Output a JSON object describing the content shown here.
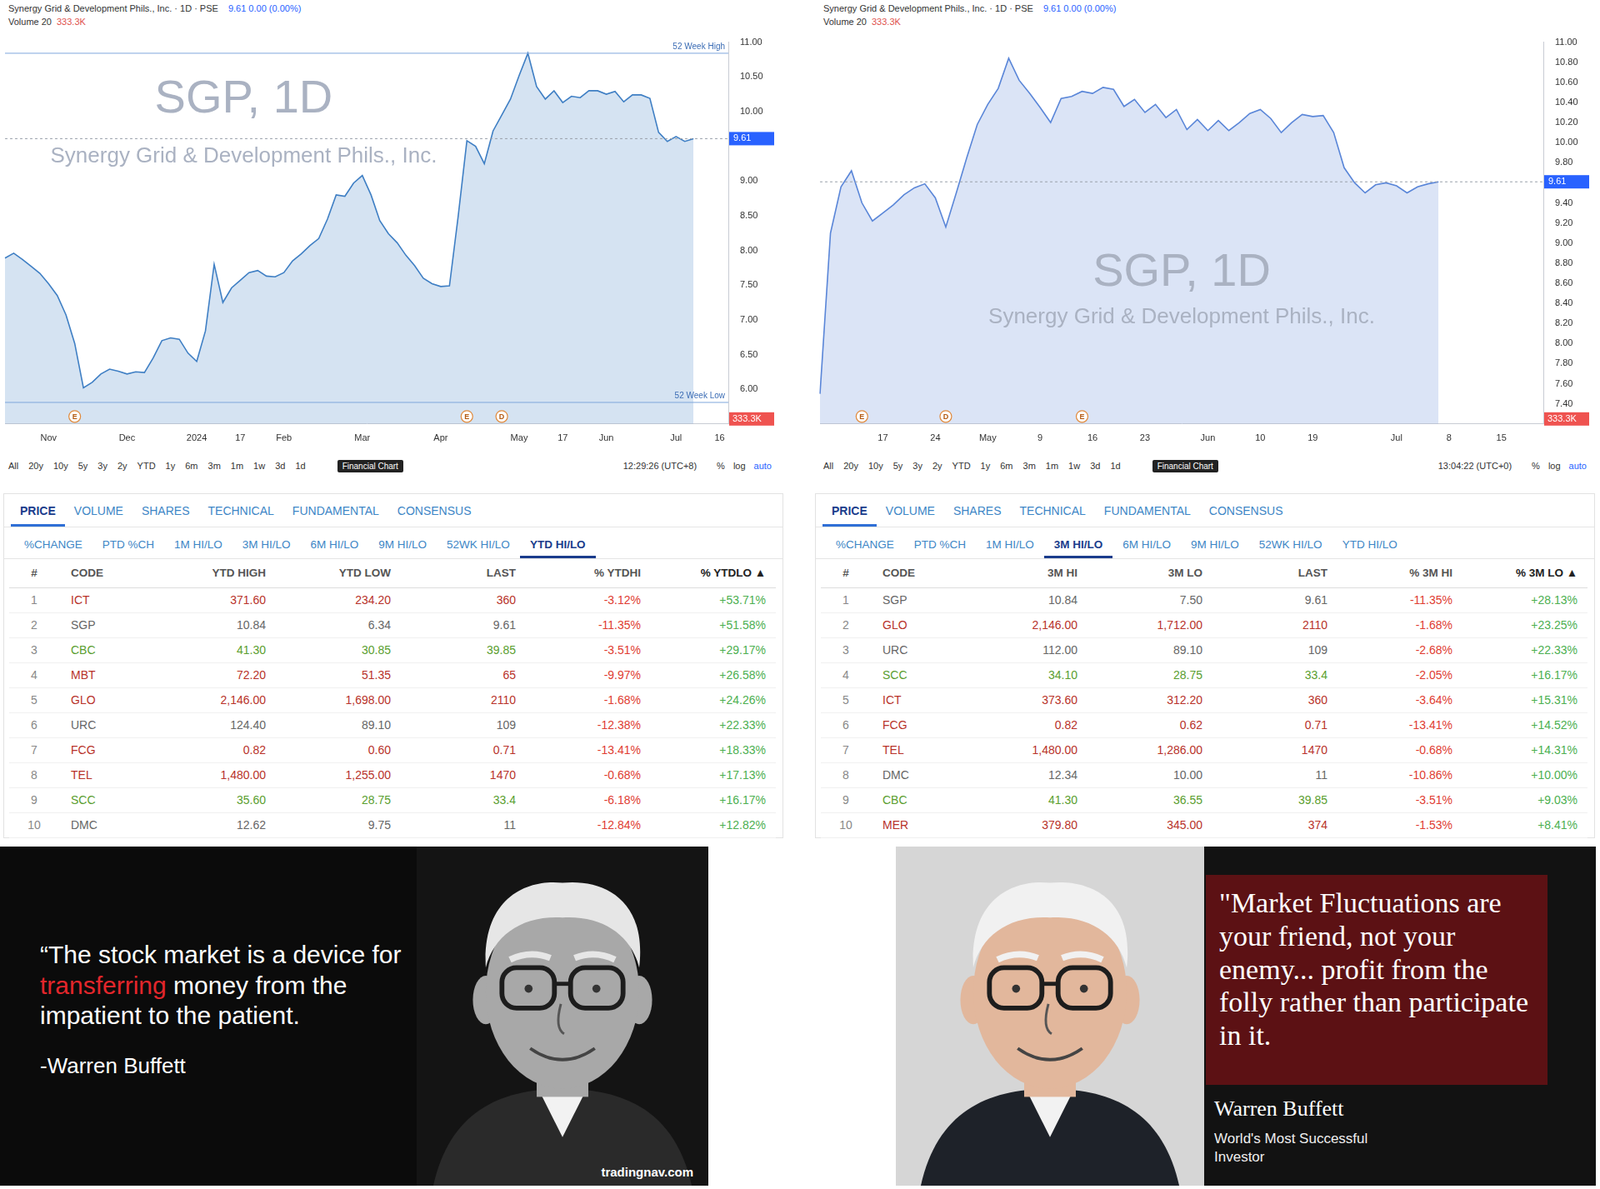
{
  "chart_data": [
    {
      "type": "line",
      "title": "Synergy Grid & Development Phils., Inc. · 1D · PSE",
      "subtitle": "9.61 0.00 (0.00%)",
      "volume_label": "Volume 20",
      "volume_value": "333.3K",
      "watermark": [
        "SGP, 1D",
        "Synergy Grid & Development Phils., Inc."
      ],
      "categories": [
        null,
        null,
        null,
        null,
        null,
        "Nov",
        null,
        null,
        null,
        null,
        null,
        null,
        null,
        null,
        "Dec",
        null,
        null,
        null,
        null,
        null,
        null,
        null,
        "2024",
        null,
        null,
        null,
        null,
        "17",
        null,
        null,
        null,
        null,
        "Feb",
        null,
        null,
        null,
        null,
        null,
        null,
        null,
        null,
        "Mar",
        null,
        null,
        null,
        null,
        null,
        null,
        null,
        null,
        "Apr",
        null,
        null,
        null,
        null,
        null,
        null,
        null,
        null,
        "May",
        null,
        null,
        null,
        null,
        "17",
        null,
        null,
        null,
        null,
        "Jun",
        null,
        null,
        null,
        null,
        null,
        null,
        null,
        "Jul",
        null,
        null,
        null,
        null,
        "16",
        null
      ],
      "values": [
        7.89,
        7.96,
        7.87,
        7.77,
        7.67,
        7.52,
        7.35,
        7.07,
        6.66,
        6.02,
        6.1,
        6.22,
        6.29,
        6.26,
        6.22,
        6.25,
        6.24,
        6.45,
        6.7,
        6.74,
        6.72,
        6.52,
        6.4,
        6.84,
        7.8,
        7.25,
        7.46,
        7.57,
        7.68,
        7.71,
        7.63,
        7.62,
        7.68,
        7.85,
        7.95,
        8.07,
        8.17,
        8.45,
        8.8,
        8.78,
        8.97,
        9.08,
        8.8,
        8.43,
        8.24,
        8.11,
        7.93,
        7.78,
        7.6,
        7.52,
        7.48,
        7.49,
        8.49,
        9.58,
        9.5,
        9.25,
        9.72,
        9.95,
        10.18,
        10.52,
        10.84,
        10.36,
        10.18,
        10.3,
        10.13,
        10.22,
        10.2,
        10.3,
        10.3,
        10.25,
        10.29,
        10.14,
        10.24,
        10.24,
        10.19,
        9.7,
        9.57,
        9.64,
        9.57,
        9.61,
        null,
        null,
        null,
        null
      ],
      "color": "#3f7fc4",
      "ylim": [
        5.5,
        11
      ],
      "yticks": [
        {
          "value": 6,
          "label": "6.00"
        },
        {
          "value": 6.5,
          "label": "6.50"
        },
        {
          "value": 7,
          "label": "7.00"
        },
        {
          "value": 7.5,
          "label": "7.50"
        },
        {
          "value": 8,
          "label": "8.00"
        },
        {
          "value": 8.5,
          "label": "8.50"
        },
        {
          "value": 9,
          "label": "9.00"
        },
        {
          "value": 10,
          "label": "10.00"
        },
        {
          "value": 10.5,
          "label": "10.50"
        },
        {
          "value": 11,
          "label": "11.00"
        }
      ],
      "grid": false,
      "price_line": {
        "value": 9.61,
        "label": "9.61"
      },
      "reference_lines": [
        {
          "value": 10.84,
          "label": "52 Week High"
        },
        {
          "value": 5.81,
          "label": "52 Week Low"
        }
      ],
      "events": [
        {
          "index": 8,
          "label": "E"
        },
        {
          "index": 53,
          "label": "E"
        },
        {
          "index": 57,
          "label": "D"
        }
      ],
      "toolbar": {
        "ranges": [
          "All",
          "20y",
          "10y",
          "5y",
          "3y",
          "2y",
          "YTD",
          "1y",
          "6m",
          "3m",
          "1m",
          "1w",
          "3d",
          "1d"
        ],
        "time": "12:29:26 (UTC+8)",
        "options": [
          "%",
          "log",
          "auto"
        ]
      },
      "tooltip": "Financial Chart"
    },
    {
      "type": "line",
      "title": "Synergy Grid & Development Phils., Inc. · 1D · PSE",
      "subtitle": "9.61 0.00 (0.00%)",
      "volume_label": "Volume 20",
      "volume_value": "333.3K",
      "watermark": [
        "SGP, 1D",
        "Synergy Grid & Development Phils., Inc."
      ],
      "categories": [
        null,
        null,
        null,
        null,
        null,
        null,
        "17",
        null,
        null,
        null,
        null,
        "24",
        null,
        null,
        null,
        null,
        "May",
        null,
        null,
        null,
        null,
        "9",
        null,
        null,
        null,
        null,
        "16",
        null,
        null,
        null,
        null,
        "23",
        null,
        null,
        null,
        null,
        null,
        "Jun",
        null,
        null,
        null,
        null,
        "10",
        null,
        null,
        null,
        null,
        "19",
        null,
        null,
        null,
        null,
        null,
        null,
        null,
        "Jul",
        null,
        null,
        null,
        null,
        "8",
        null,
        null,
        null,
        null,
        "15",
        null,
        null,
        null,
        null
      ],
      "values": [
        7.5,
        9.1,
        9.56,
        9.72,
        9.4,
        9.22,
        9.3,
        9.38,
        9.48,
        9.55,
        9.59,
        9.45,
        9.16,
        9.5,
        9.85,
        10.18,
        10.38,
        10.54,
        10.84,
        10.62,
        10.49,
        10.35,
        10.2,
        10.44,
        10.46,
        10.51,
        10.49,
        10.55,
        10.53,
        10.36,
        10.43,
        10.3,
        10.38,
        10.25,
        10.33,
        10.13,
        10.23,
        10.12,
        10.22,
        10.12,
        10.2,
        10.29,
        10.33,
        10.24,
        10.1,
        10.2,
        10.28,
        10.26,
        10.27,
        10.1,
        9.75,
        9.6,
        9.5,
        9.58,
        9.6,
        9.57,
        9.5,
        9.56,
        9.59,
        9.61,
        null,
        null,
        null,
        null,
        null,
        null,
        null,
        null,
        null,
        null
      ],
      "color": "#5a86d8",
      "ylim": [
        7.2,
        11
      ],
      "yticks": [
        {
          "value": 7.4,
          "label": "7.40"
        },
        {
          "value": 7.6,
          "label": "7.60"
        },
        {
          "value": 7.8,
          "label": "7.80"
        },
        {
          "value": 8,
          "label": "8.00"
        },
        {
          "value": 8.2,
          "label": "8.20"
        },
        {
          "value": 8.4,
          "label": "8.40"
        },
        {
          "value": 8.6,
          "label": "8.60"
        },
        {
          "value": 8.8,
          "label": "8.80"
        },
        {
          "value": 9,
          "label": "9.00"
        },
        {
          "value": 9.2,
          "label": "9.20"
        },
        {
          "value": 9.4,
          "label": "9.40"
        },
        {
          "value": 9.8,
          "label": "9.80"
        },
        {
          "value": 10,
          "label": "10.00"
        },
        {
          "value": 10.2,
          "label": "10.20"
        },
        {
          "value": 10.4,
          "label": "10.40"
        },
        {
          "value": 10.6,
          "label": "10.60"
        },
        {
          "value": 10.8,
          "label": "10.80"
        },
        {
          "value": 11,
          "label": "11.00"
        }
      ],
      "grid": false,
      "price_line": {
        "value": 9.61,
        "label": "9.61"
      },
      "reference_lines": [],
      "events": [
        {
          "index": 4,
          "label": "E"
        },
        {
          "index": 12,
          "label": "D"
        },
        {
          "index": 25,
          "label": "E"
        }
      ],
      "toolbar": {
        "ranges": [
          "All",
          "20y",
          "10y",
          "5y",
          "3y",
          "2y",
          "YTD",
          "1y",
          "6m",
          "3m",
          "1m",
          "1w",
          "3d",
          "1d"
        ],
        "time": "13:04:22 (UTC+0)",
        "options": [
          "%",
          "log",
          "auto"
        ]
      },
      "tooltip": "Financial Chart"
    }
  ],
  "tables": [
    {
      "tabs": [
        "PRICE",
        "VOLUME",
        "SHARES",
        "TECHNICAL",
        "FUNDAMENTAL",
        "CONSENSUS"
      ],
      "active_tab": "PRICE",
      "subtabs": [
        "%CHANGE",
        "PTD %CH",
        "1M HI/LO",
        "3M HI/LO",
        "6M HI/LO",
        "9M HI/LO",
        "52WK HI/LO",
        "YTD HI/LO"
      ],
      "active_subtab": "YTD HI/LO",
      "columns": [
        "#",
        "CODE",
        "YTD HIGH",
        "YTD LOW",
        "LAST",
        "% YTDHI",
        "% YTDLO ▲"
      ],
      "rows": [
        {
          "cells": [
            "1",
            "ICT",
            "371.60",
            "234.20",
            "360",
            "-3.12%",
            "+53.71%"
          ],
          "color": "red"
        },
        {
          "cells": [
            "2",
            "SGP",
            "10.84",
            "6.34",
            "9.61",
            "-11.35%",
            "+51.58%"
          ],
          "color": "gray"
        },
        {
          "cells": [
            "3",
            "CBC",
            "41.30",
            "30.85",
            "39.85",
            "-3.51%",
            "+29.17%"
          ],
          "color": "green"
        },
        {
          "cells": [
            "4",
            "MBT",
            "72.20",
            "51.35",
            "65",
            "-9.97%",
            "+26.58%"
          ],
          "color": "red"
        },
        {
          "cells": [
            "5",
            "GLO",
            "2,146.00",
            "1,698.00",
            "2110",
            "-1.68%",
            "+24.26%"
          ],
          "color": "red"
        },
        {
          "cells": [
            "6",
            "URC",
            "124.40",
            "89.10",
            "109",
            "-12.38%",
            "+22.33%"
          ],
          "color": "gray"
        },
        {
          "cells": [
            "7",
            "FCG",
            "0.82",
            "0.60",
            "0.71",
            "-13.41%",
            "+18.33%"
          ],
          "color": "red"
        },
        {
          "cells": [
            "8",
            "TEL",
            "1,480.00",
            "1,255.00",
            "1470",
            "-0.68%",
            "+17.13%"
          ],
          "color": "red"
        },
        {
          "cells": [
            "9",
            "SCC",
            "35.60",
            "28.75",
            "33.4",
            "-6.18%",
            "+16.17%"
          ],
          "color": "green"
        },
        {
          "cells": [
            "10",
            "DMC",
            "12.62",
            "9.75",
            "11",
            "-12.84%",
            "+12.82%"
          ],
          "color": "gray"
        }
      ]
    },
    {
      "tabs": [
        "PRICE",
        "VOLUME",
        "SHARES",
        "TECHNICAL",
        "FUNDAMENTAL",
        "CONSENSUS"
      ],
      "active_tab": "PRICE",
      "subtabs": [
        "%CHANGE",
        "PTD %CH",
        "1M HI/LO",
        "3M HI/LO",
        "6M HI/LO",
        "9M HI/LO",
        "52WK HI/LO",
        "YTD HI/LO"
      ],
      "active_subtab": "3M HI/LO",
      "columns": [
        "#",
        "CODE",
        "3M HI",
        "3M LO",
        "LAST",
        "% 3M HI",
        "% 3M LO ▲"
      ],
      "rows": [
        {
          "cells": [
            "1",
            "SGP",
            "10.84",
            "7.50",
            "9.61",
            "-11.35%",
            "+28.13%"
          ],
          "color": "gray"
        },
        {
          "cells": [
            "2",
            "GLO",
            "2,146.00",
            "1,712.00",
            "2110",
            "-1.68%",
            "+23.25%"
          ],
          "color": "red"
        },
        {
          "cells": [
            "3",
            "URC",
            "112.00",
            "89.10",
            "109",
            "-2.68%",
            "+22.33%"
          ],
          "color": "gray"
        },
        {
          "cells": [
            "4",
            "SCC",
            "34.10",
            "28.75",
            "33.4",
            "-2.05%",
            "+16.17%"
          ],
          "color": "green"
        },
        {
          "cells": [
            "5",
            "ICT",
            "373.60",
            "312.20",
            "360",
            "-3.64%",
            "+15.31%"
          ],
          "color": "red"
        },
        {
          "cells": [
            "6",
            "FCG",
            "0.82",
            "0.62",
            "0.71",
            "-13.41%",
            "+14.52%"
          ],
          "color": "red"
        },
        {
          "cells": [
            "7",
            "TEL",
            "1,480.00",
            "1,286.00",
            "1470",
            "-0.68%",
            "+14.31%"
          ],
          "color": "red"
        },
        {
          "cells": [
            "8",
            "DMC",
            "12.34",
            "10.00",
            "11",
            "-10.86%",
            "+10.00%"
          ],
          "color": "gray"
        },
        {
          "cells": [
            "9",
            "CBC",
            "41.30",
            "36.55",
            "39.85",
            "-3.51%",
            "+9.03%"
          ],
          "color": "green"
        },
        {
          "cells": [
            "10",
            "MER",
            "379.80",
            "345.00",
            "374",
            "-1.53%",
            "+8.41%"
          ],
          "color": "red"
        }
      ]
    }
  ],
  "quotes": [
    {
      "text_before": "“The stock market is a device for ",
      "highlight": "transferring",
      "text_after": " money from the impatient to the patient.",
      "author": "-Warren Buffett",
      "source": "tradingnav.com"
    },
    {
      "text": "\"Market Fluctuations are your friend, not your enemy... profit from the folly rather than participate in it.",
      "author": "Warren Buffett",
      "caption": "World's Most Successful Investor"
    }
  ]
}
